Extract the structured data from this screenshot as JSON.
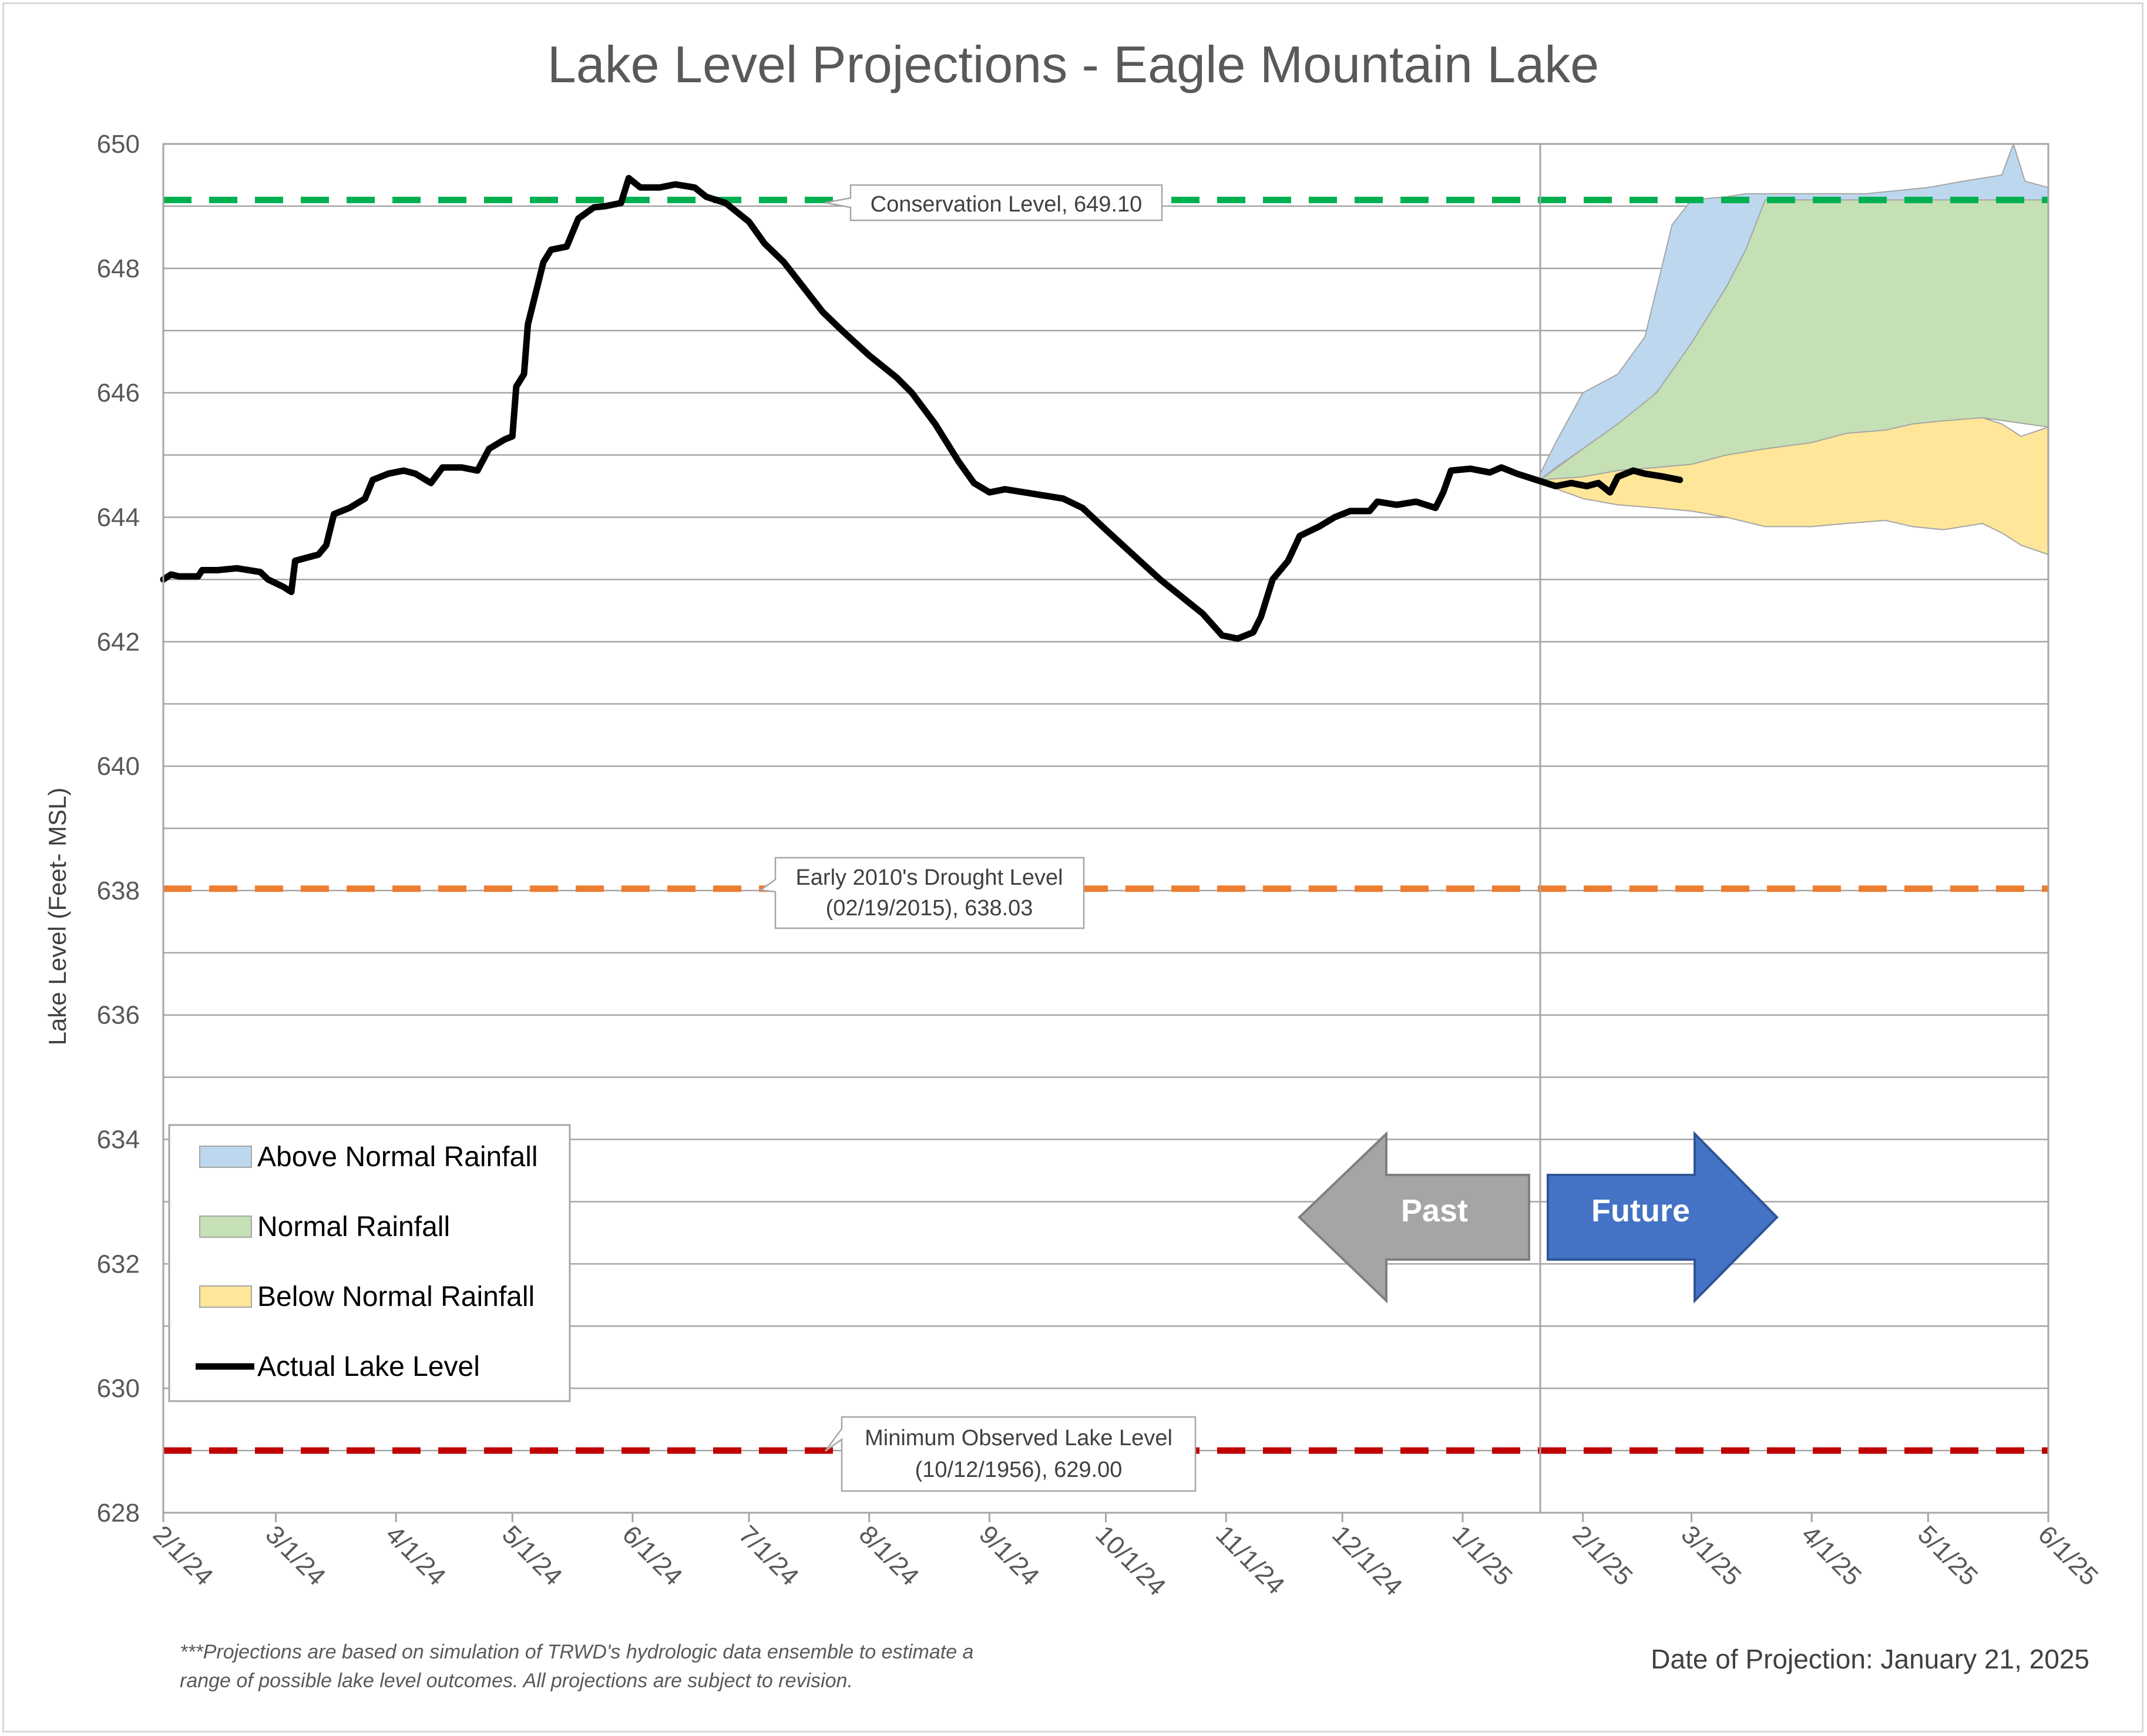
{
  "chart_data": {
    "type": "line",
    "title": "Lake Level Projections - Eagle Mountain Lake",
    "ylabel": "Lake Level (Feet- MSL)",
    "xlabel": "",
    "ylim": [
      628,
      650
    ],
    "y_ticks": [
      628,
      630,
      632,
      634,
      636,
      638,
      640,
      642,
      644,
      646,
      648,
      650
    ],
    "x_ticks": [
      "2/1/24",
      "3/1/24",
      "4/1/24",
      "5/1/24",
      "6/1/24",
      "7/1/24",
      "8/1/24",
      "9/1/24",
      "10/1/24",
      "11/1/24",
      "12/1/24",
      "1/1/25",
      "2/1/25",
      "3/1/25",
      "4/1/25",
      "5/1/25",
      "6/1/25"
    ],
    "grid": true,
    "reference_lines": [
      {
        "name": "Conservation Level",
        "label": "Conservation Level, 649.10",
        "value": 649.1,
        "color": "#00b050"
      },
      {
        "name": "Early 2010's Drought Level",
        "label_line1": "Early 2010's Drought Level",
        "label_line2": "(02/19/2015), 638.03",
        "value": 638.03,
        "color": "#ed7d31"
      },
      {
        "name": "Minimum Observed Lake Level",
        "label_line1": "Minimum Observed Lake Level",
        "label_line2": "(10/12/1956), 629.00",
        "value": 629.0,
        "color": "#c00000"
      }
    ],
    "projection_date": "2025-01-21",
    "series": [
      {
        "name": "Actual Lake Level",
        "color": "#000000",
        "points": [
          [
            "2024-02-01",
            643.0
          ],
          [
            "2024-02-03",
            643.08
          ],
          [
            "2024-02-05",
            643.05
          ],
          [
            "2024-02-10",
            643.05
          ],
          [
            "2024-02-11",
            643.15
          ],
          [
            "2024-02-15",
            643.15
          ],
          [
            "2024-02-20",
            643.18
          ],
          [
            "2024-02-26",
            643.12
          ],
          [
            "2024-02-28",
            643.0
          ],
          [
            "2024-03-03",
            642.88
          ],
          [
            "2024-03-05",
            642.8
          ],
          [
            "2024-03-06",
            643.3
          ],
          [
            "2024-03-12",
            643.4
          ],
          [
            "2024-03-14",
            643.55
          ],
          [
            "2024-03-16",
            644.05
          ],
          [
            "2024-03-20",
            644.15
          ],
          [
            "2024-03-24",
            644.3
          ],
          [
            "2024-03-26",
            644.6
          ],
          [
            "2024-03-30",
            644.7
          ],
          [
            "2024-04-03",
            644.75
          ],
          [
            "2024-04-06",
            644.7
          ],
          [
            "2024-04-10",
            644.55
          ],
          [
            "2024-04-13",
            644.8
          ],
          [
            "2024-04-18",
            644.8
          ],
          [
            "2024-04-22",
            644.75
          ],
          [
            "2024-04-25",
            645.1
          ],
          [
            "2024-04-29",
            645.25
          ],
          [
            "2024-05-01",
            645.3
          ],
          [
            "2024-05-02",
            646.1
          ],
          [
            "2024-05-04",
            646.3
          ],
          [
            "2024-05-05",
            647.1
          ],
          [
            "2024-05-07",
            647.6
          ],
          [
            "2024-05-09",
            648.1
          ],
          [
            "2024-05-11",
            648.3
          ],
          [
            "2024-05-15",
            648.35
          ],
          [
            "2024-05-18",
            648.8
          ],
          [
            "2024-05-22",
            648.98
          ],
          [
            "2024-05-25",
            649.0
          ],
          [
            "2024-05-29",
            649.05
          ],
          [
            "2024-05-31",
            649.45
          ],
          [
            "2024-06-03",
            649.3
          ],
          [
            "2024-06-08",
            649.3
          ],
          [
            "2024-06-12",
            649.35
          ],
          [
            "2024-06-17",
            649.3
          ],
          [
            "2024-06-20",
            649.15
          ],
          [
            "2024-06-25",
            649.05
          ],
          [
            "2024-07-01",
            648.75
          ],
          [
            "2024-07-05",
            648.4
          ],
          [
            "2024-07-10",
            648.1
          ],
          [
            "2024-07-15",
            647.7
          ],
          [
            "2024-07-20",
            647.3
          ],
          [
            "2024-07-25",
            647.0
          ],
          [
            "2024-08-01",
            646.6
          ],
          [
            "2024-08-05",
            646.4
          ],
          [
            "2024-08-08",
            646.25
          ],
          [
            "2024-08-12",
            646.0
          ],
          [
            "2024-08-18",
            645.5
          ],
          [
            "2024-08-24",
            644.9
          ],
          [
            "2024-08-28",
            644.55
          ],
          [
            "2024-09-01",
            644.4
          ],
          [
            "2024-09-05",
            644.45
          ],
          [
            "2024-09-10",
            644.4
          ],
          [
            "2024-09-15",
            644.35
          ],
          [
            "2024-09-20",
            644.3
          ],
          [
            "2024-09-25",
            644.15
          ],
          [
            "2024-10-01",
            643.8
          ],
          [
            "2024-10-08",
            643.4
          ],
          [
            "2024-10-15",
            643.0
          ],
          [
            "2024-10-20",
            642.75
          ],
          [
            "2024-10-26",
            642.45
          ],
          [
            "2024-10-31",
            642.1
          ],
          [
            "2024-11-04",
            642.05
          ],
          [
            "2024-11-08",
            642.15
          ],
          [
            "2024-11-10",
            642.4
          ],
          [
            "2024-11-13",
            643.0
          ],
          [
            "2024-11-17",
            643.3
          ],
          [
            "2024-11-20",
            643.7
          ],
          [
            "2024-11-25",
            643.85
          ],
          [
            "2024-11-29",
            644.0
          ],
          [
            "2024-12-03",
            644.1
          ],
          [
            "2024-12-08",
            644.1
          ],
          [
            "2024-12-10",
            644.25
          ],
          [
            "2024-12-15",
            644.2
          ],
          [
            "2024-12-20",
            644.25
          ],
          [
            "2024-12-25",
            644.15
          ],
          [
            "2024-12-27",
            644.4
          ],
          [
            "2024-12-29",
            644.75
          ],
          [
            "2025-01-03",
            644.78
          ],
          [
            "2025-01-08",
            644.72
          ],
          [
            "2025-01-11",
            644.8
          ],
          [
            "2025-01-15",
            644.7
          ],
          [
            "2025-01-20",
            644.6
          ],
          [
            "2025-01-25",
            644.5
          ],
          [
            "2025-01-29",
            644.55
          ],
          [
            "2025-02-02",
            644.5
          ],
          [
            "2025-02-05",
            644.55
          ],
          [
            "2025-02-08",
            644.4
          ],
          [
            "2025-02-10",
            644.65
          ],
          [
            "2025-02-14",
            644.75
          ],
          [
            "2025-02-17",
            644.7
          ],
          [
            "2025-02-22",
            644.65
          ],
          [
            "2025-02-26",
            644.6
          ]
        ]
      },
      {
        "name": "Below Normal Rainfall",
        "color": "#ffe699",
        "band": [
          [
            "2025-01-21",
            644.55,
            644.6
          ],
          [
            "2025-02-01",
            644.3,
            644.65
          ],
          [
            "2025-02-10",
            644.2,
            644.75
          ],
          [
            "2025-02-20",
            644.15,
            644.8
          ],
          [
            "2025-03-01",
            644.1,
            644.85
          ],
          [
            "2025-03-10",
            644.0,
            645.0
          ],
          [
            "2025-03-20",
            643.85,
            645.1
          ],
          [
            "2025-04-01",
            643.85,
            645.2
          ],
          [
            "2025-04-10",
            643.9,
            645.35
          ],
          [
            "2025-04-20",
            643.95,
            645.4
          ],
          [
            "2025-04-27",
            643.85,
            645.5
          ],
          [
            "2025-05-05",
            643.8,
            645.55
          ],
          [
            "2025-05-15",
            643.9,
            645.6
          ],
          [
            "2025-05-20",
            643.75,
            645.5
          ],
          [
            "2025-05-25",
            643.55,
            645.3
          ],
          [
            "2025-06-01",
            643.4,
            645.45
          ]
        ]
      },
      {
        "name": "Normal Rainfall",
        "color": "#c5e0b4",
        "band": [
          [
            "2025-01-21",
            644.6,
            644.6
          ],
          [
            "2025-02-01",
            644.65,
            645.1
          ],
          [
            "2025-02-10",
            644.75,
            645.5
          ],
          [
            "2025-02-20",
            644.8,
            646.0
          ],
          [
            "2025-03-01",
            644.85,
            646.8
          ],
          [
            "2025-03-10",
            645.0,
            647.7
          ],
          [
            "2025-03-15",
            645.05,
            648.3
          ],
          [
            "2025-03-20",
            645.1,
            649.1
          ],
          [
            "2025-04-01",
            645.2,
            649.1
          ],
          [
            "2025-04-15",
            645.35,
            649.1
          ],
          [
            "2025-05-01",
            645.5,
            649.1
          ],
          [
            "2025-05-15",
            645.6,
            649.1
          ],
          [
            "2025-06-01",
            645.45,
            649.1
          ]
        ]
      },
      {
        "name": "Above Normal Rainfall",
        "color": "#bdd7ee",
        "band": [
          [
            "2025-01-21",
            644.6,
            644.7
          ],
          [
            "2025-01-25",
            644.8,
            645.2
          ],
          [
            "2025-02-01",
            645.1,
            646.0
          ],
          [
            "2025-02-10",
            645.5,
            646.3
          ],
          [
            "2025-02-17",
            645.8,
            646.9
          ],
          [
            "2025-02-24",
            646.3,
            648.7
          ],
          [
            "2025-03-01",
            646.8,
            649.1
          ],
          [
            "2025-03-10",
            647.7,
            649.15
          ],
          [
            "2025-03-15",
            648.3,
            649.2
          ],
          [
            "2025-03-20",
            649.1,
            649.2
          ],
          [
            "2025-04-15",
            649.1,
            649.2
          ],
          [
            "2025-05-01",
            649.1,
            649.3
          ],
          [
            "2025-05-10",
            649.1,
            649.4
          ],
          [
            "2025-05-20",
            649.1,
            649.5
          ],
          [
            "2025-05-23",
            649.1,
            650.0
          ],
          [
            "2025-05-26",
            649.1,
            649.4
          ],
          [
            "2025-06-01",
            649.1,
            649.3
          ]
        ]
      }
    ],
    "legend": {
      "placement": "bottom-left",
      "entries": [
        "Above Normal Rainfall",
        "Normal Rainfall",
        "Below Normal Rainfall",
        "Actual Lake Level"
      ]
    },
    "arrows": {
      "past": "Past",
      "future": "Future",
      "past_color": "#a5a5a5",
      "future_color": "#4472c4"
    }
  },
  "footnote": {
    "line1": "***Projections are based on simulation of TRWD's hydrologic data ensemble to estimate a",
    "line2": "range of possible lake level outcomes.  All projections are subject to revision."
  },
  "date_of_projection": "Date of Projection: January 21, 2025"
}
